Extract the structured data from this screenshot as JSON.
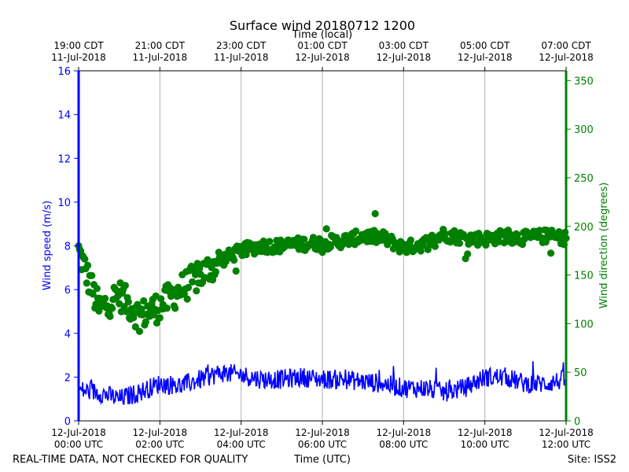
{
  "chart_data": {
    "type": "line+scatter",
    "title": "Surface wind 20180712 1200",
    "top_axis_label": "Time (local)",
    "top_ticks": [
      {
        "h": 0,
        "l1": "19:00 CDT",
        "l2": "11-Jul-2018"
      },
      {
        "h": 2,
        "l1": "21:00 CDT",
        "l2": "11-Jul-2018"
      },
      {
        "h": 4,
        "l1": "23:00 CDT",
        "l2": "11-Jul-2018"
      },
      {
        "h": 6,
        "l1": "01:00 CDT",
        "l2": "12-Jul-2018"
      },
      {
        "h": 8,
        "l1": "03:00 CDT",
        "l2": "12-Jul-2018"
      },
      {
        "h": 10,
        "l1": "05:00 CDT",
        "l2": "12-Jul-2018"
      },
      {
        "h": 12,
        "l1": "07:00 CDT",
        "l2": "12-Jul-2018"
      }
    ],
    "bottom_ticks": [
      {
        "h": 0,
        "l1": "12-Jul-2018",
        "l2": "00:00 UTC"
      },
      {
        "h": 2,
        "l1": "12-Jul-2018",
        "l2": "02:00 UTC"
      },
      {
        "h": 4,
        "l1": "12-Jul-2018",
        "l2": "04:00 UTC"
      },
      {
        "h": 6,
        "l1": "12-Jul-2018",
        "l2": "06:00 UTC"
      },
      {
        "h": 8,
        "l1": "12-Jul-2018",
        "l2": "08:00 UTC"
      },
      {
        "h": 10,
        "l1": "12-Jul-2018",
        "l2": "10:00 UTC"
      },
      {
        "h": 12,
        "l1": "12-Jul-2018",
        "l2": "12:00 UTC"
      }
    ],
    "xlim_hours": [
      0,
      12
    ],
    "left_axis": {
      "label": "Wind speed (m/s)",
      "lim": [
        0,
        16
      ],
      "ticks": [
        0,
        2,
        4,
        6,
        8,
        10,
        12,
        14,
        16
      ],
      "color": "#0000ff"
    },
    "right_axis": {
      "label": "Wind direction (degrees)",
      "lim": [
        0,
        360
      ],
      "ticks": [
        0,
        50,
        100,
        150,
        200,
        250,
        300,
        350
      ],
      "color": "#008000"
    },
    "grid": "vertical",
    "speed_series": {
      "name": "Wind speed",
      "color": "#0000ff",
      "hours": [
        0,
        0.5,
        1,
        1.5,
        2,
        2.5,
        3,
        3.5,
        4,
        4.5,
        5,
        5.5,
        6,
        6.5,
        7,
        7.5,
        8,
        8.5,
        9,
        9.5,
        10,
        10.5,
        11,
        11.5,
        12
      ],
      "values": [
        1.4,
        1.3,
        1.0,
        1.3,
        1.7,
        1.6,
        1.9,
        2.2,
        2.1,
        1.9,
        1.9,
        2.0,
        1.9,
        1.9,
        1.8,
        1.7,
        1.5,
        1.5,
        1.3,
        1.5,
        2.0,
        2.0,
        1.7,
        1.7,
        1.9
      ]
    },
    "direction_series": {
      "name": "Wind direction",
      "color": "#008000",
      "hours": [
        0,
        0.5,
        1,
        1.5,
        2,
        2.5,
        3,
        3.5,
        4,
        4.5,
        5,
        5.5,
        6,
        6.5,
        7,
        7.5,
        8,
        8.5,
        9,
        9.5,
        10,
        10.5,
        11,
        11.5,
        12
      ],
      "values": [
        175,
        115,
        130,
        108,
        118,
        135,
        150,
        165,
        175,
        180,
        180,
        182,
        183,
        185,
        190,
        188,
        178,
        182,
        192,
        188,
        187,
        190,
        188,
        190,
        188
      ]
    }
  },
  "footer": {
    "left_note": "REAL-TIME DATA, NOT CHECKED FOR QUALITY",
    "xlabel": "Time (UTC)",
    "site": "Site: ISS2"
  }
}
